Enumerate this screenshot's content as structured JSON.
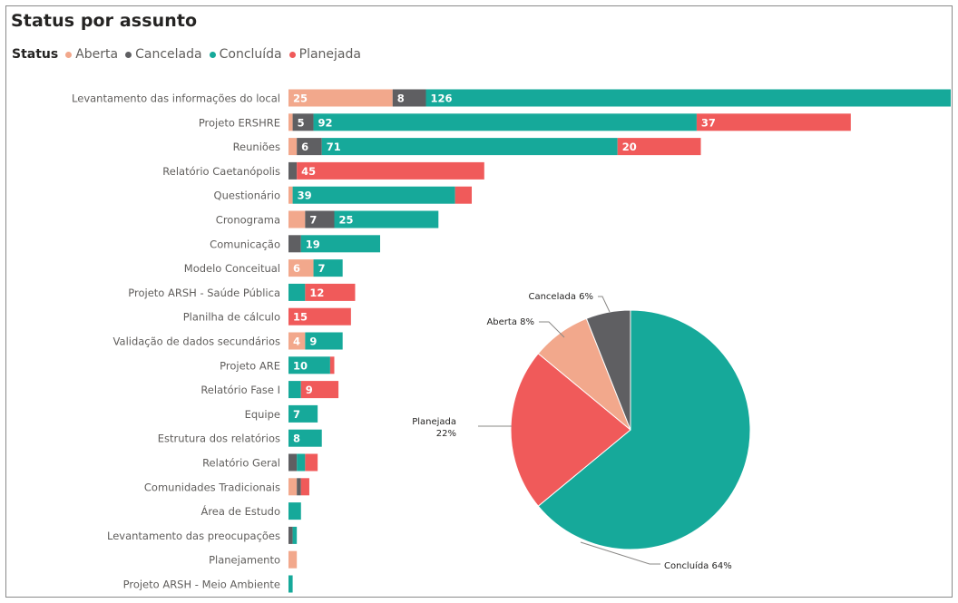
{
  "title": "Status por assunto",
  "legend_title": "Status",
  "chart_data": [
    {
      "type": "bar",
      "orientation": "horizontal",
      "stacked": true,
      "categories": [
        "Levantamento das informações do local",
        "Projeto ERSHRE",
        "Reuniões",
        "Relatório Caetanópolis",
        "Questionário",
        "Cronograma",
        "Comunicação",
        "Modelo Conceitual",
        "Projeto ARSH - Saúde Pública",
        "Planilha de cálculo",
        "Validação de dados secundários",
        "Projeto ARE",
        "Relatório Fase I",
        "Equipe",
        "Estrutura dos relatórios",
        "Relatório Geral",
        "Comunidades Tradicionais",
        "Área de Estudo",
        "Levantamento das preocupações",
        "Planejamento",
        "Projeto ARSH - Meio Ambiente"
      ],
      "series": [
        {
          "name": "Aberta",
          "color": "#F2A88C",
          "values": [
            25,
            1,
            2,
            0,
            1,
            4,
            0,
            6,
            0,
            0,
            4,
            0,
            0,
            0,
            0,
            0,
            2,
            0,
            0,
            2,
            0
          ]
        },
        {
          "name": "Cancelada",
          "color": "#5F5F62",
          "values": [
            8,
            5,
            6,
            2,
            0,
            7,
            3,
            0,
            0,
            0,
            0,
            0,
            0,
            0,
            0,
            2,
            1,
            0,
            1,
            0,
            0
          ]
        },
        {
          "name": "Concluída",
          "color": "#16A99A",
          "values": [
            126,
            92,
            71,
            0,
            39,
            25,
            19,
            7,
            4,
            0,
            9,
            10,
            3,
            7,
            8,
            2,
            0,
            3,
            1,
            0,
            1
          ]
        },
        {
          "name": "Planejada",
          "color": "#F05A5A",
          "values": [
            0,
            37,
            20,
            45,
            4,
            0,
            0,
            0,
            12,
            15,
            0,
            1,
            9,
            0,
            0,
            3,
            2,
            0,
            0,
            0,
            0
          ]
        }
      ],
      "data_labels": [
        [
          "25",
          "8",
          "126",
          ""
        ],
        [
          "",
          "5",
          "92",
          "37"
        ],
        [
          "",
          "6",
          "71",
          "20"
        ],
        [
          "",
          "",
          "",
          "45"
        ],
        [
          "",
          "",
          "39",
          ""
        ],
        [
          "",
          "7",
          "25",
          ""
        ],
        [
          "",
          "",
          "19",
          ""
        ],
        [
          "6",
          "",
          "7",
          ""
        ],
        [
          "",
          "",
          "",
          "12"
        ],
        [
          "",
          "",
          "",
          "15"
        ],
        [
          "4",
          "",
          "9",
          ""
        ],
        [
          "",
          "",
          "10",
          ""
        ],
        [
          "",
          "",
          "",
          "9"
        ],
        [
          "",
          "",
          "7",
          ""
        ],
        [
          "",
          "",
          "8",
          ""
        ],
        [
          "",
          "",
          "",
          ""
        ],
        [
          "",
          "",
          "",
          ""
        ],
        [
          "",
          "",
          "",
          ""
        ],
        [
          "",
          "",
          "",
          ""
        ],
        [
          "",
          "",
          "",
          ""
        ],
        [
          "",
          "",
          "",
          ""
        ]
      ],
      "xlim": [
        0,
        159
      ],
      "grid": false,
      "legend_position": "top-left"
    },
    {
      "type": "pie",
      "categories": [
        "Concluída",
        "Planejada",
        "Aberta",
        "Cancelada"
      ],
      "values": [
        64,
        22,
        8,
        6
      ],
      "colors": [
        "#16A99A",
        "#F05A5A",
        "#F2A88C",
        "#5F5F62"
      ],
      "labels": [
        "Concluída 64%",
        "Planejada 22%",
        "Aberta 8%",
        "Cancelada 6%"
      ],
      "label_lines": [
        [
          "Concluída 64%"
        ],
        [
          "Planejada",
          "22%"
        ],
        [
          "Aberta 8%"
        ],
        [
          "Cancelada 6%"
        ]
      ]
    }
  ]
}
